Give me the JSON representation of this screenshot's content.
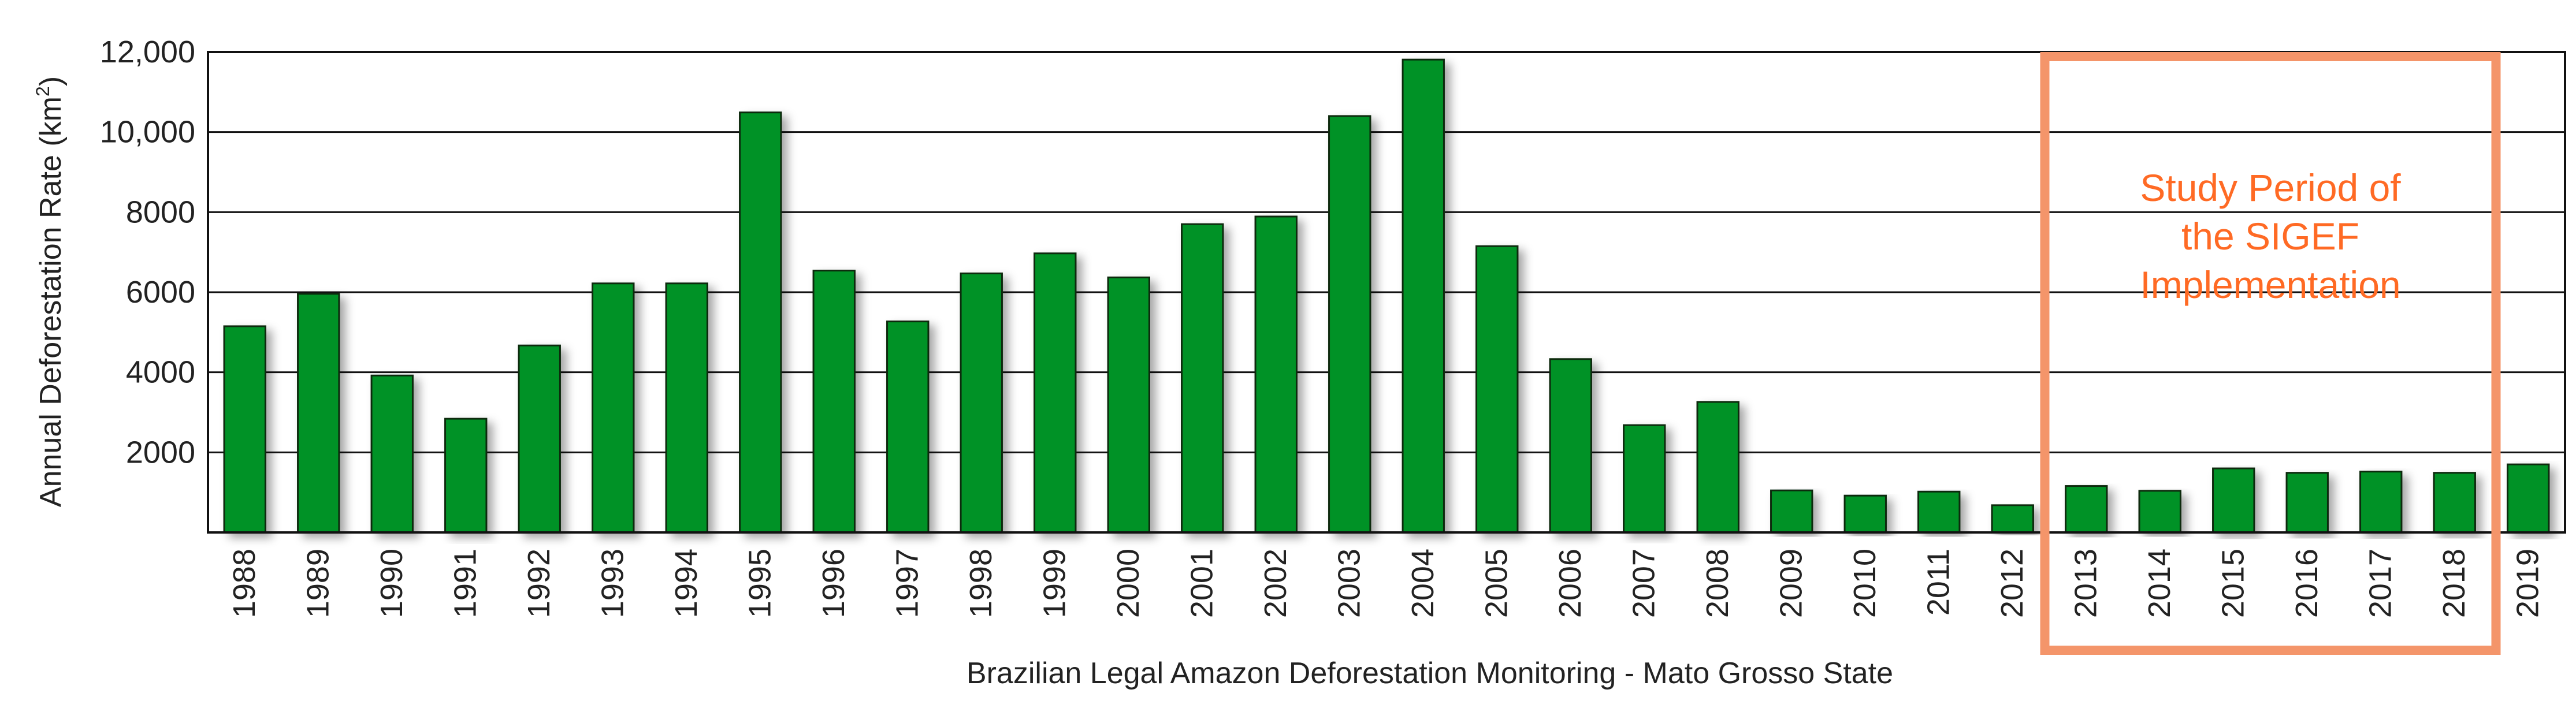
{
  "chart_data": {
    "type": "bar",
    "categories": [
      "1988",
      "1989",
      "1990",
      "1991",
      "1992",
      "1993",
      "1994",
      "1995",
      "1996",
      "1997",
      "1998",
      "1999",
      "2000",
      "2001",
      "2002",
      "2003",
      "2004",
      "2005",
      "2006",
      "2007",
      "2008",
      "2009",
      "2010",
      "2011",
      "2012",
      "2013",
      "2014",
      "2015",
      "2016",
      "2017",
      "2018",
      "2019"
    ],
    "values": [
      5150,
      5960,
      3920,
      2840,
      4670,
      6220,
      6220,
      10490,
      6540,
      5270,
      6470,
      6970,
      6370,
      7700,
      7890,
      10400,
      11810,
      7150,
      4330,
      2680,
      3260,
      1050,
      920,
      1020,
      680,
      1160,
      1040,
      1600,
      1490,
      1520,
      1490,
      1700
    ],
    "xlabel": "Brazilian Legal Amazon Deforestation Monitoring - Mato Grosso State",
    "ylabel": "Annual Deforestation Rate (km",
    "ylabel_superscript": "2",
    "ylabel_suffix": ")",
    "ylim": [
      0,
      12000
    ],
    "yticks": [
      2000,
      4000,
      6000,
      8000,
      10000,
      12000
    ],
    "ytick_labels": [
      "2000",
      "4000",
      "6000",
      "8000",
      "10,000",
      "12,000"
    ],
    "grid": "horizontal",
    "bar_color": "#009225",
    "annotation": {
      "lines": [
        "Study Period of",
        "the SIGEF",
        "Implementation"
      ],
      "from_category": "2013",
      "to_category": "2018",
      "color": "#f4956a",
      "text_color": "#ff6a24"
    }
  }
}
